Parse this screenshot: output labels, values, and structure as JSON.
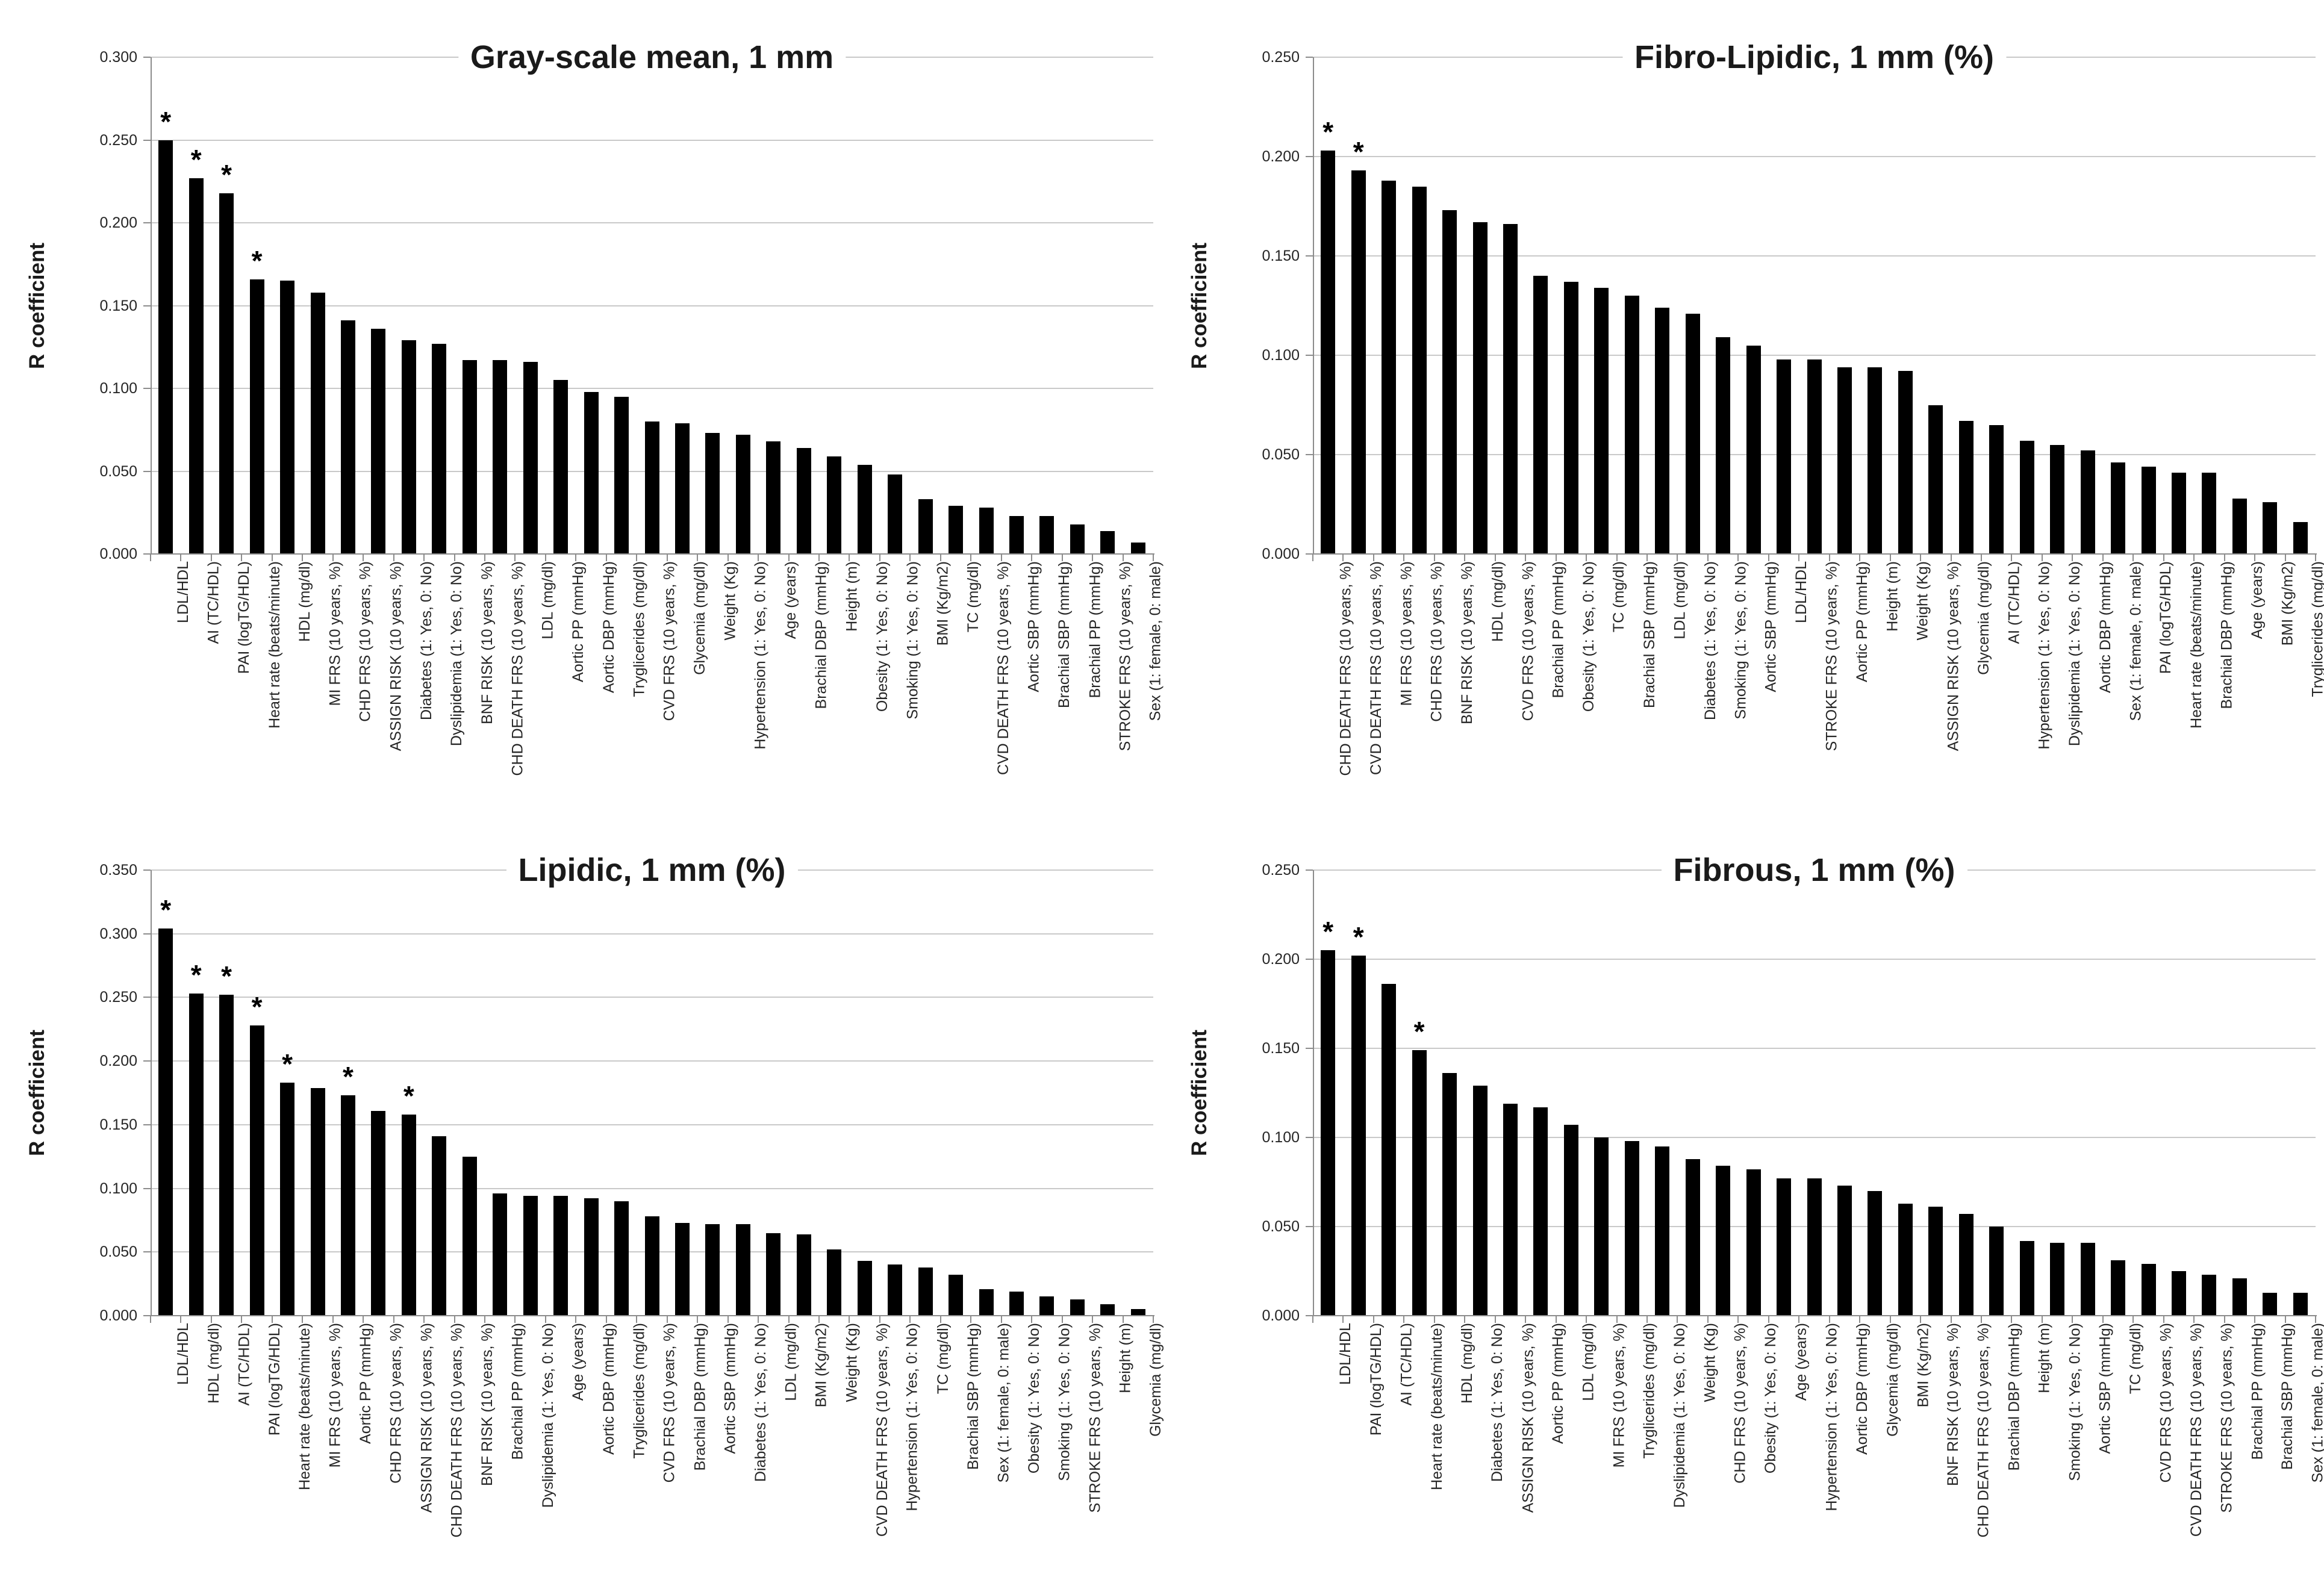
{
  "figure": {
    "y_axis_title": "R coefficient",
    "significance_marker": "*",
    "bar_color": "#000000",
    "gridline_color": "#c9c9c9",
    "axis_color": "#8c8c8c"
  },
  "chart_data": [
    {
      "type": "bar",
      "title": "Gray-scale mean, 1 mm",
      "ylabel": "R coefficient",
      "xlabel": "",
      "ylim": [
        0,
        0.3
      ],
      "ytick_step": 0.05,
      "grid": "horizontal",
      "legend": "none",
      "bar_color": "#000000",
      "categories": [
        "LDL/HDL",
        "AI (TC/HDL)",
        "PAI (logTG/HDL)",
        "Heart rate (beats/minute)",
        "HDL (mg/dl)",
        "MI FRS (10 years, %)",
        "CHD FRS (10 years, %)",
        "ASSIGN RISK (10 years, %)",
        "Diabetes (1: Yes, 0: No)",
        "Dyslipidemia (1: Yes, 0: No)",
        "BNF RISK (10 years, %)",
        "CHD DEATH FRS (10 years, %)",
        "LDL (mg/dl)",
        "Aortic PP (mmHg)",
        "Aortic DBP (mmHg)",
        "Tryglicerides (mg/dl)",
        "CVD FRS (10 years, %)",
        "Glycemia (mg/dl)",
        "Weight (Kg)",
        "Hypertension (1: Yes, 0: No)",
        "Age (years)",
        "Brachial DBP (mmHg)",
        "Height (m)",
        "Obesity (1: Yes, 0: No)",
        "Smoking (1: Yes, 0: No)",
        "BMI (Kg/m2)",
        "TC (mg/dl)",
        "CVD DEATH FRS (10 years, %)",
        "Aortic SBP (mmHg)",
        "Brachial SBP (mmHg)",
        "Brachial PP (mmHg)",
        "STROKE FRS (10 years, %)",
        "Sex (1: female, 0: male)"
      ],
      "values": [
        0.25,
        0.227,
        0.218,
        0.166,
        0.165,
        0.158,
        0.141,
        0.136,
        0.129,
        0.127,
        0.117,
        0.117,
        0.116,
        0.105,
        0.098,
        0.095,
        0.08,
        0.079,
        0.073,
        0.072,
        0.068,
        0.064,
        0.059,
        0.054,
        0.048,
        0.033,
        0.029,
        0.028,
        0.023,
        0.023,
        0.018,
        0.014,
        0.007
      ],
      "significant_indices": [
        0,
        1,
        2,
        3
      ]
    },
    {
      "type": "bar",
      "title": "Fibro-Lipidic, 1 mm (%)",
      "ylabel": "R coefficient",
      "xlabel": "",
      "ylim": [
        0,
        0.25
      ],
      "ytick_step": 0.05,
      "grid": "horizontal",
      "legend": "none",
      "bar_color": "#000000",
      "categories": [
        "CHD DEATH FRS (10 years, %)",
        "CVD DEATH FRS (10 years, %)",
        "MI FRS (10 years, %)",
        "CHD FRS (10 years, %)",
        "BNF RISK (10 years, %)",
        "HDL (mg/dl)",
        "CVD FRS (10 years, %)",
        "Brachial PP (mmHg)",
        "Obesity (1: Yes, 0: No)",
        "TC (mg/dl)",
        "Brachial SBP (mmHg)",
        "LDL (mg/dl)",
        "Diabetes (1: Yes, 0: No)",
        "Smoking (1: Yes, 0: No)",
        "Aortic SBP (mmHg)",
        "LDL/HDL",
        "STROKE FRS (10 years, %)",
        "Aortic PP (mmHg)",
        "Height (m)",
        "Weight (Kg)",
        "ASSIGN RISK (10 years, %)",
        "Glycemia (mg/dl)",
        "AI (TC/HDL)",
        "Hypertension (1: Yes, 0: No)",
        "Dyslipidemia (1: Yes, 0: No)",
        "Aortic DBP (mmHg)",
        "Sex (1: female, 0: male)",
        "PAI (logTG/HDL)",
        "Heart rate (beats/minute)",
        "Brachial DBP (mmHg)",
        "Age (years)",
        "BMI (Kg/m2)",
        "Tryglicerides (mg/dl)"
      ],
      "values": [
        0.203,
        0.193,
        0.188,
        0.185,
        0.173,
        0.167,
        0.166,
        0.14,
        0.137,
        0.134,
        0.13,
        0.124,
        0.121,
        0.109,
        0.105,
        0.098,
        0.098,
        0.094,
        0.094,
        0.092,
        0.075,
        0.067,
        0.065,
        0.057,
        0.055,
        0.052,
        0.046,
        0.044,
        0.041,
        0.041,
        0.028,
        0.026,
        0.016
      ],
      "significant_indices": [
        0,
        1
      ]
    },
    {
      "type": "bar",
      "title": "Lipidic, 1 mm (%)",
      "ylabel": "R coefficient",
      "xlabel": "",
      "ylim": [
        0,
        0.35
      ],
      "ytick_step": 0.05,
      "grid": "horizontal",
      "legend": "none",
      "bar_color": "#000000",
      "categories": [
        "LDL/HDL",
        "HDL (mg/dl)",
        "AI (TC/HDL)",
        "PAI (logTG/HDL)",
        "Heart rate (beats/minute)",
        "MI FRS (10 years, %)",
        "Aortic PP (mmHg)",
        "CHD FRS (10 years, %)",
        "ASSIGN RISK (10 years, %)",
        "CHD DEATH FRS (10 years, %)",
        "BNF RISK (10 years, %)",
        "Brachial PP (mmHg)",
        "Dyslipidemia (1: Yes, 0: No)",
        "Age (years)",
        "Aortic DBP (mmHg)",
        "Tryglicerides (mg/dl)",
        "CVD FRS (10 years, %)",
        "Brachial DBP (mmHg)",
        "Aortic SBP (mmHg)",
        "Diabetes (1: Yes, 0: No)",
        "LDL (mg/dl)",
        "BMI (Kg/m2)",
        "Weight (Kg)",
        "CVD DEATH FRS (10 years, %)",
        "Hypertension (1: Yes, 0: No)",
        "TC (mg/dl)",
        "Brachial SBP (mmHg)",
        "Sex (1: female, 0: male)",
        "Obesity (1: Yes, 0: No)",
        "Smoking (1: Yes, 0: No)",
        "STROKE FRS (10 years, %)",
        "Height (m)",
        "Glycemia (mg/dl)"
      ],
      "values": [
        0.304,
        0.253,
        0.252,
        0.228,
        0.183,
        0.179,
        0.173,
        0.161,
        0.158,
        0.141,
        0.125,
        0.096,
        0.094,
        0.094,
        0.092,
        0.09,
        0.078,
        0.073,
        0.072,
        0.072,
        0.065,
        0.064,
        0.052,
        0.043,
        0.04,
        0.038,
        0.032,
        0.021,
        0.019,
        0.015,
        0.013,
        0.009,
        0.005
      ],
      "significant_indices": [
        0,
        1,
        2,
        3,
        4,
        6,
        8
      ]
    },
    {
      "type": "bar",
      "title": "Fibrous, 1 mm (%)",
      "ylabel": "R coefficient",
      "xlabel": "",
      "ylim": [
        0,
        0.25
      ],
      "ytick_step": 0.05,
      "grid": "horizontal",
      "legend": "none",
      "bar_color": "#000000",
      "categories": [
        "LDL/HDL",
        "PAI (logTG/HDL)",
        "AI (TC/HDL)",
        "Heart rate (beats/minute)",
        "HDL (mg/dl)",
        "Diabetes (1: Yes, 0: No)",
        "ASSIGN RISK (10 years, %)",
        "Aortic PP (mmHg)",
        "LDL (mg/dl)",
        "MI FRS (10 years, %)",
        "Tryglicerides (mg/dl)",
        "Dyslipidemia (1: Yes, 0: No)",
        "Weight (Kg)",
        "CHD FRS (10 years, %)",
        "Obesity (1: Yes, 0: No)",
        "Age (years)",
        "Hypertension (1: Yes, 0: No)",
        "Aortic DBP (mmHg)",
        "Glycemia (mg/dl)",
        "BMI (Kg/m2)",
        "BNF RISK (10 years, %)",
        "CHD DEATH FRS (10 years, %)",
        "Brachial DBP (mmHg)",
        "Height (m)",
        "Smoking (1: Yes, 0: No)",
        "Aortic SBP (mmHg)",
        "TC (mg/dl)",
        "CVD FRS (10 years, %)",
        "CVD DEATH FRS (10 years, %)",
        "STROKE FRS (10 years, %)",
        "Brachial PP (mmHg)",
        "Brachial SBP (mmHg)",
        "Sex (1: female, 0: male)"
      ],
      "values": [
        0.205,
        0.202,
        0.186,
        0.149,
        0.136,
        0.129,
        0.119,
        0.117,
        0.107,
        0.1,
        0.098,
        0.095,
        0.088,
        0.084,
        0.082,
        0.077,
        0.077,
        0.073,
        0.07,
        0.063,
        0.061,
        0.057,
        0.05,
        0.042,
        0.041,
        0.041,
        0.031,
        0.029,
        0.025,
        0.023,
        0.021,
        0.013,
        0.013
      ],
      "significant_indices": [
        0,
        1,
        3
      ]
    }
  ]
}
